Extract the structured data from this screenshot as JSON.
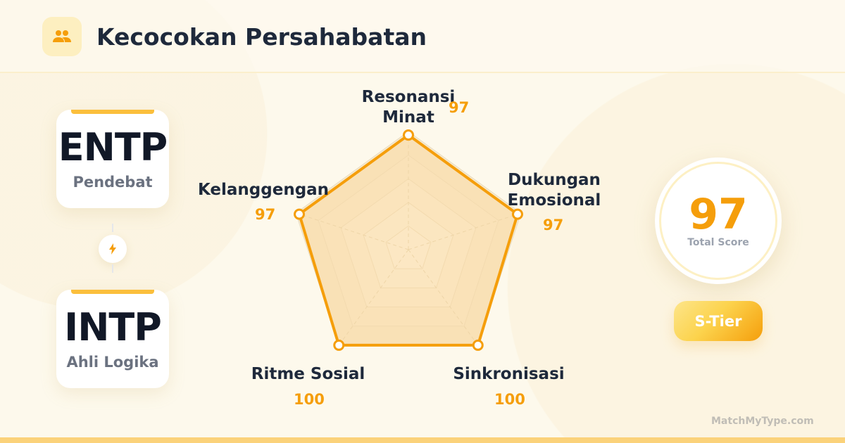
{
  "header": {
    "title": "Kecocokan Persahabatan",
    "icon": "users-icon"
  },
  "types": [
    {
      "code": "ENTP",
      "name": "Pendebat"
    },
    {
      "code": "INTP",
      "name": "Ahli Logika"
    }
  ],
  "connector_icon": "lightning-icon",
  "chart_data": {
    "type": "radar",
    "categories": [
      "Resonansi Minat",
      "Dukungan Emosional",
      "Sinkronisasi",
      "Ritme Sosial",
      "Kelanggengan"
    ],
    "values": [
      97,
      97,
      100,
      100,
      97
    ],
    "value_labels": [
      "97",
      "97",
      "100",
      "100",
      "97"
    ],
    "range": [
      0,
      100
    ],
    "grid_levels": 5,
    "colors": {
      "stroke": "#f59e0b",
      "fill": "#fcd9a0"
    }
  },
  "score": {
    "value": "97",
    "label": "Total Score"
  },
  "tier": "S-Tier",
  "brand": "MatchMyType.com",
  "colors": {
    "accent": "#f59e0b",
    "text": "#1e293b"
  }
}
